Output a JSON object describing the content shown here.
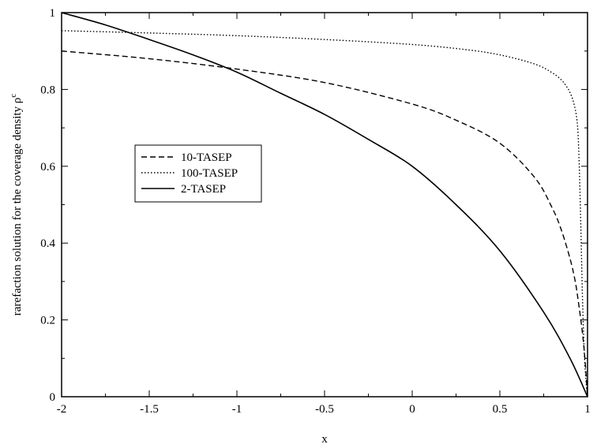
{
  "chart_data": {
    "type": "line",
    "title": "",
    "xlabel": "x",
    "ylabel": "rarefaction solution for the coverage density ρ",
    "ylabel_superscript": "c",
    "xlim": [
      -2,
      1
    ],
    "ylim": [
      0,
      1
    ],
    "xticks": [
      "-2",
      "-1.5",
      "-1",
      "-0.5",
      "0",
      "0.5",
      "1"
    ],
    "yticks": [
      "0",
      "0.2",
      "0.4",
      "0.6",
      "0.8",
      "1"
    ],
    "grid": false,
    "legend_position": "center-left",
    "series": [
      {
        "name": "10-TASEP",
        "style": "dashed",
        "x": [
          -2,
          -1.5,
          -1,
          -0.5,
          0,
          0.25,
          0.5,
          0.7,
          0.8,
          0.85,
          0.9,
          0.93,
          0.95,
          0.97,
          0.985,
          1
        ],
        "y": [
          0.9,
          0.88,
          0.853,
          0.818,
          0.762,
          0.72,
          0.66,
          0.57,
          0.49,
          0.435,
          0.36,
          0.3,
          0.24,
          0.17,
          0.1,
          0
        ]
      },
      {
        "name": "100-TASEP",
        "style": "dotted",
        "x": [
          -2,
          -1.5,
          -1,
          -0.5,
          0,
          0.3,
          0.5,
          0.7,
          0.8,
          0.85,
          0.88,
          0.9,
          0.92,
          0.94,
          0.95,
          0.96,
          0.97,
          0.98,
          0.99,
          1
        ],
        "y": [
          0.953,
          0.947,
          0.94,
          0.93,
          0.917,
          0.904,
          0.89,
          0.866,
          0.843,
          0.825,
          0.808,
          0.792,
          0.767,
          0.72,
          0.64,
          0.48,
          0.28,
          0.13,
          0.05,
          0
        ]
      },
      {
        "name": "2-TASEP",
        "style": "solid",
        "x": [
          -2,
          -1.75,
          -1.5,
          -1.25,
          -1,
          -0.75,
          -0.5,
          -0.25,
          0,
          0.25,
          0.5,
          0.75,
          0.9,
          1
        ],
        "y": [
          1.0,
          0.968,
          0.93,
          0.89,
          0.845,
          0.79,
          0.735,
          0.67,
          0.6,
          0.5,
          0.38,
          0.22,
          0.1,
          0
        ]
      }
    ]
  }
}
